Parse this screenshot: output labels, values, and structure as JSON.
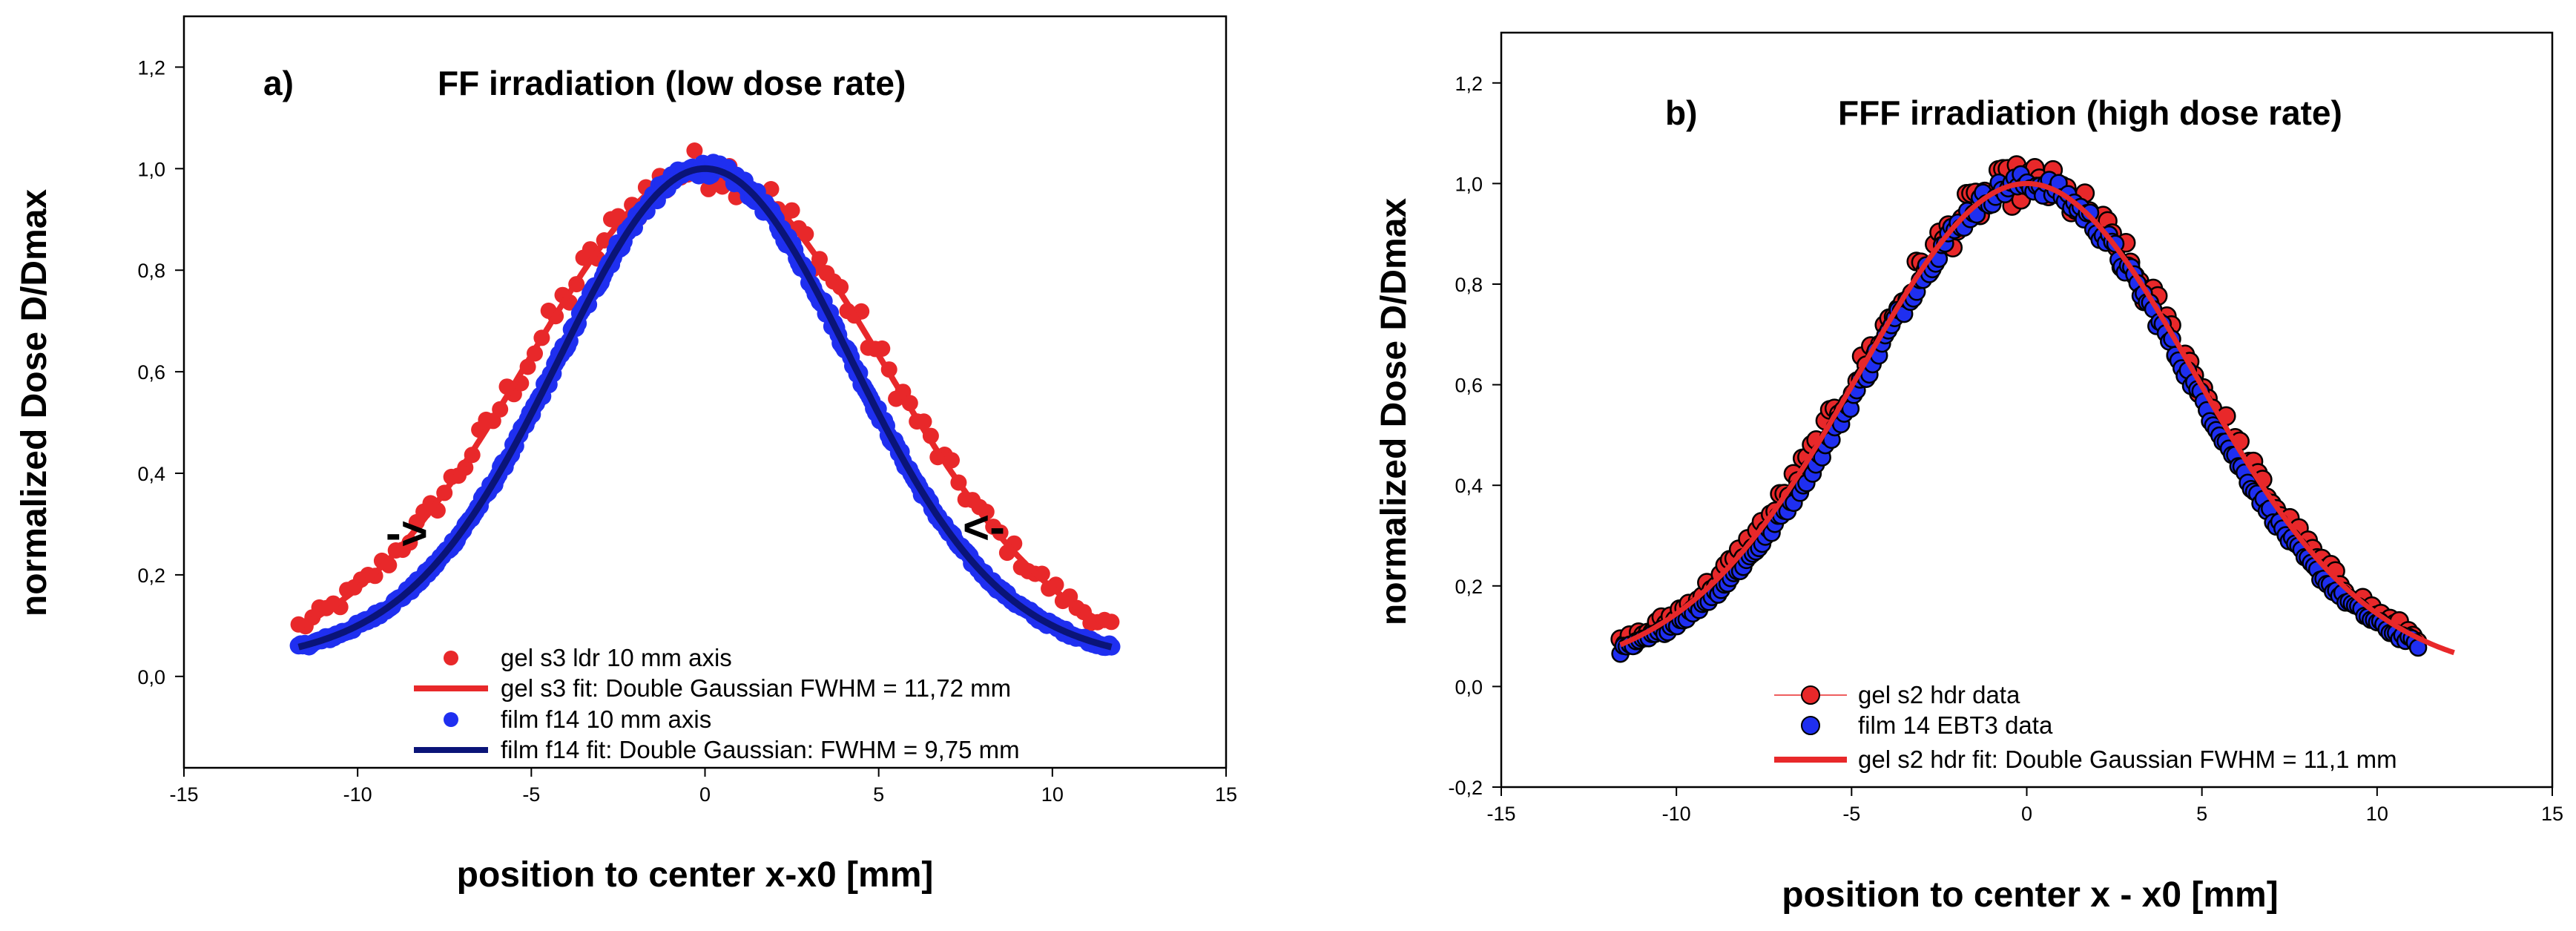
{
  "chart_data": [
    {
      "type": "scatter",
      "panel_label": "a)",
      "title": "FF irradiation (low dose rate)",
      "xlabel": "position to center x-x0 [mm]",
      "ylabel": "normalized Dose D/Dmax",
      "xlim": [
        -15,
        15
      ],
      "ylim": [
        -0.18,
        1.3
      ],
      "xticks": [
        -15,
        -10,
        -5,
        0,
        5,
        10,
        15
      ],
      "yticks": [
        0.0,
        0.2,
        0.4,
        0.6,
        0.8,
        1.0,
        1.2
      ],
      "xtick_labels": [
        "-15",
        "-10",
        "-5",
        "0",
        "5",
        "10",
        "15"
      ],
      "ytick_labels": [
        "0,0",
        "0,2",
        "0,4",
        "0,6",
        "0,8",
        "1,0",
        "1,2"
      ],
      "grid": false,
      "legend_position": "bottom-center",
      "annotations": [
        "->",
        "<-"
      ],
      "series": [
        {
          "name": "gel s3 ldr 10 mm axis",
          "kind": "points",
          "color": "#e8282a",
          "model": "double_gaussian",
          "fwhm_mm": 11.72,
          "wide_fraction": 0.14,
          "wide_fwhm_mm": 18,
          "x_range": [
            -11.7,
            11.7
          ],
          "point_spacing": 0.2
        },
        {
          "name": "gel s3 fit: Double Gaussian FWHM = 11,72 mm",
          "kind": "line",
          "color": "#e8282a",
          "model": "double_gaussian",
          "fwhm_mm": 11.72,
          "wide_fraction": 0.14,
          "wide_fwhm_mm": 18,
          "x_range": [
            -11.7,
            11.7
          ]
        },
        {
          "name": "film f14 10 mm axis",
          "kind": "points",
          "color": "#1f2ff0",
          "model": "double_gaussian",
          "fwhm_mm": 9.75,
          "wide_fraction": 0.09,
          "wide_fwhm_mm": 22,
          "x_range": [
            -11.7,
            11.7
          ],
          "point_spacing": 0.06
        },
        {
          "name": "film f14 fit: Double Gaussian: FWHM = 9,75 mm",
          "kind": "line",
          "color": "#0a1478",
          "model": "double_gaussian",
          "fwhm_mm": 9.75,
          "wide_fraction": 0.09,
          "wide_fwhm_mm": 22,
          "x_range": [
            -11.7,
            11.7
          ]
        }
      ]
    },
    {
      "type": "scatter",
      "panel_label": "b)",
      "title": "FFF irradiation (high dose rate)",
      "xlabel": "position to center x - x0 [mm]",
      "ylabel": "normalized Dose D/Dmax",
      "xlim": [
        -15,
        15
      ],
      "ylim": [
        -0.2,
        1.3
      ],
      "xticks": [
        -15,
        -10,
        -5,
        0,
        5,
        10,
        15
      ],
      "yticks": [
        -0.2,
        0.0,
        0.2,
        0.4,
        0.6,
        0.8,
        1.0,
        1.2
      ],
      "xtick_labels": [
        "-15",
        "-10",
        "-5",
        "0",
        "5",
        "10",
        "15"
      ],
      "ytick_labels": [
        "-0,2",
        "0,0",
        "0,2",
        "0,4",
        "0,6",
        "0,8",
        "1,0",
        "1,2"
      ],
      "grid": false,
      "legend_position": "bottom-center",
      "series": [
        {
          "name": "gel s2 hdr data",
          "kind": "points",
          "color": "#e8282a",
          "model": "double_gaussian",
          "fwhm_mm": 11.1,
          "wide_fraction": 0.1,
          "wide_fwhm_mm": 20,
          "x_range": [
            -11.6,
            11.2
          ],
          "point_spacing": 0.13
        },
        {
          "name": "film 14 EBT3 data",
          "kind": "points",
          "color": "#1f2ff0",
          "model": "double_gaussian",
          "fwhm_mm": 10.6,
          "wide_fraction": 0.1,
          "wide_fwhm_mm": 20,
          "x_range": [
            -11.6,
            11.2
          ],
          "point_spacing": 0.09
        },
        {
          "name": "gel s2 hdr fit: Double Gaussian FWHM = 11,1 mm",
          "kind": "line",
          "color": "#e8282a",
          "model": "double_gaussian",
          "fwhm_mm": 11.1,
          "wide_fraction": 0.1,
          "wide_fwhm_mm": 20,
          "x_range": [
            -11.6,
            12.2
          ]
        }
      ]
    }
  ]
}
